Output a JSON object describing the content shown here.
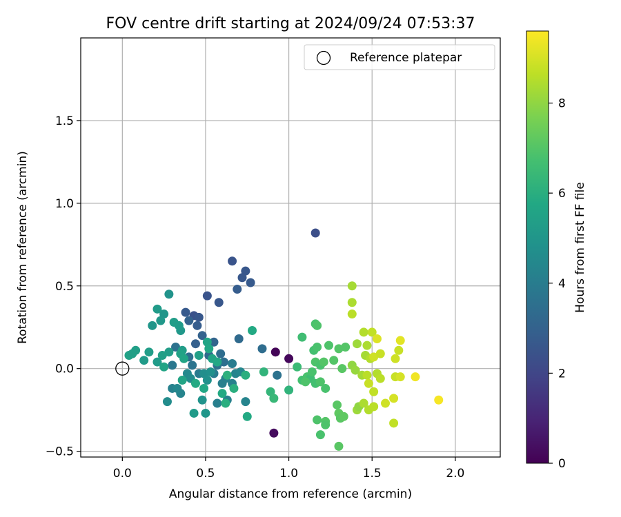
{
  "chart_data": {
    "type": "scatter",
    "title": "FOV centre drift starting at 2024/09/24 07:53:37",
    "xlabel": "Angular distance from reference (arcmin)",
    "ylabel": "Rotation from reference (arcmin)",
    "xlim": [
      -0.25,
      2.27
    ],
    "ylim": [
      -0.535,
      2.0
    ],
    "xticks": [
      "0.0",
      "0.5",
      "1.0",
      "1.5",
      "2.0"
    ],
    "yticks": [
      "−0.5",
      "0.0",
      "0.5",
      "1.0",
      "1.5"
    ],
    "xtick_values": [
      0,
      0.5,
      1.0,
      1.5,
      2.0
    ],
    "ytick_values": [
      -0.5,
      0,
      0.5,
      1.0,
      1.5
    ],
    "grid": true,
    "legend": {
      "position": "top-right",
      "entries": [
        "Reference platepar"
      ]
    },
    "reference_point": {
      "x": 0.0,
      "y": 0.0,
      "label": "Reference platepar"
    },
    "colorbar": {
      "label": "Hours from first FF file",
      "colormap": "viridis",
      "range": [
        0,
        9.6
      ],
      "ticks": [
        "0",
        "2",
        "4",
        "6",
        "8"
      ],
      "tick_values": [
        0,
        2,
        4,
        6,
        8
      ]
    },
    "points": [
      {
        "x": 0.92,
        "y": 0.1,
        "c": 0.1
      },
      {
        "x": 1.0,
        "y": 0.06,
        "c": 0.2
      },
      {
        "x": 0.91,
        "y": -0.39,
        "c": 0.3
      },
      {
        "x": 1.16,
        "y": 0.82,
        "c": 2.3
      },
      {
        "x": 0.66,
        "y": 0.65,
        "c": 2.5
      },
      {
        "x": 0.74,
        "y": 0.59,
        "c": 2.6
      },
      {
        "x": 0.72,
        "y": 0.55,
        "c": 2.6
      },
      {
        "x": 0.77,
        "y": 0.52,
        "c": 2.7
      },
      {
        "x": 0.69,
        "y": 0.48,
        "c": 2.8
      },
      {
        "x": 0.51,
        "y": 0.44,
        "c": 2.5
      },
      {
        "x": 0.58,
        "y": 0.4,
        "c": 2.6
      },
      {
        "x": 0.38,
        "y": 0.34,
        "c": 2.7
      },
      {
        "x": 0.43,
        "y": 0.32,
        "c": 2.4
      },
      {
        "x": 0.46,
        "y": 0.31,
        "c": 2.6
      },
      {
        "x": 0.45,
        "y": 0.26,
        "c": 2.8
      },
      {
        "x": 0.4,
        "y": 0.29,
        "c": 3.0
      },
      {
        "x": 0.48,
        "y": 0.2,
        "c": 3.0
      },
      {
        "x": 0.44,
        "y": 0.15,
        "c": 2.9
      },
      {
        "x": 0.55,
        "y": 0.16,
        "c": 3.1
      },
      {
        "x": 0.7,
        "y": 0.18,
        "c": 3.3
      },
      {
        "x": 0.84,
        "y": 0.12,
        "c": 3.4
      },
      {
        "x": 0.93,
        "y": -0.04,
        "c": 3.6
      },
      {
        "x": 0.52,
        "y": 0.08,
        "c": 3.3
      },
      {
        "x": 0.59,
        "y": 0.09,
        "c": 3.4
      },
      {
        "x": 0.61,
        "y": 0.04,
        "c": 3.5
      },
      {
        "x": 0.57,
        "y": 0.02,
        "c": 3.6
      },
      {
        "x": 0.4,
        "y": 0.07,
        "c": 3.5
      },
      {
        "x": 0.32,
        "y": 0.13,
        "c": 3.6
      },
      {
        "x": 0.3,
        "y": 0.02,
        "c": 3.8
      },
      {
        "x": 0.42,
        "y": 0.02,
        "c": 3.7
      },
      {
        "x": 0.46,
        "y": -0.03,
        "c": 3.9
      },
      {
        "x": 0.55,
        "y": -0.03,
        "c": 4.0
      },
      {
        "x": 0.66,
        "y": 0.03,
        "c": 4.0
      },
      {
        "x": 0.62,
        "y": -0.06,
        "c": 4.2
      },
      {
        "x": 0.6,
        "y": -0.09,
        "c": 4.1
      },
      {
        "x": 0.66,
        "y": -0.09,
        "c": 4.2
      },
      {
        "x": 0.68,
        "y": -0.03,
        "c": 4.3
      },
      {
        "x": 0.71,
        "y": -0.02,
        "c": 4.4
      },
      {
        "x": 0.74,
        "y": -0.2,
        "c": 4.3
      },
      {
        "x": 0.63,
        "y": -0.19,
        "c": 4.2
      },
      {
        "x": 0.57,
        "y": -0.21,
        "c": 4.1
      },
      {
        "x": 0.35,
        "y": -0.15,
        "c": 4.3
      },
      {
        "x": 0.3,
        "y": -0.12,
        "c": 4.2
      },
      {
        "x": 0.33,
        "y": -0.12,
        "c": 4.4
      },
      {
        "x": 0.27,
        "y": -0.2,
        "c": 4.6
      },
      {
        "x": 0.39,
        "y": -0.03,
        "c": 4.5
      },
      {
        "x": 0.41,
        "y": -0.06,
        "c": 4.6
      },
      {
        "x": 0.49,
        "y": -0.03,
        "c": 4.7
      },
      {
        "x": 0.51,
        "y": -0.07,
        "c": 4.8
      },
      {
        "x": 0.53,
        "y": -0.02,
        "c": 4.8
      },
      {
        "x": 0.48,
        "y": -0.19,
        "c": 4.9
      },
      {
        "x": 0.5,
        "y": -0.27,
        "c": 5.0
      },
      {
        "x": 0.43,
        "y": -0.27,
        "c": 5.2
      },
      {
        "x": 0.28,
        "y": 0.45,
        "c": 4.9
      },
      {
        "x": 0.25,
        "y": 0.33,
        "c": 5.0
      },
      {
        "x": 0.21,
        "y": 0.36,
        "c": 5.2
      },
      {
        "x": 0.23,
        "y": 0.29,
        "c": 5.1
      },
      {
        "x": 0.18,
        "y": 0.26,
        "c": 5.0
      },
      {
        "x": 0.35,
        "y": 0.23,
        "c": 5.1
      },
      {
        "x": 0.34,
        "y": 0.26,
        "c": 5.2
      },
      {
        "x": 0.31,
        "y": 0.28,
        "c": 5.3
      },
      {
        "x": 0.36,
        "y": 0.11,
        "c": 5.3
      },
      {
        "x": 0.28,
        "y": 0.1,
        "c": 5.3
      },
      {
        "x": 0.24,
        "y": 0.08,
        "c": 5.4
      },
      {
        "x": 0.21,
        "y": 0.04,
        "c": 5.2
      },
      {
        "x": 0.16,
        "y": 0.1,
        "c": 5.3
      },
      {
        "x": 0.13,
        "y": 0.05,
        "c": 5.2
      },
      {
        "x": 0.08,
        "y": 0.11,
        "c": 5.4
      },
      {
        "x": 0.04,
        "y": 0.08,
        "c": 5.5
      },
      {
        "x": 0.06,
        "y": 0.09,
        "c": 5.4
      },
      {
        "x": 0.25,
        "y": 0.01,
        "c": 5.6
      },
      {
        "x": 0.35,
        "y": 0.09,
        "c": 5.5
      },
      {
        "x": 0.37,
        "y": 0.06,
        "c": 5.6
      },
      {
        "x": 0.46,
        "y": 0.08,
        "c": 5.4
      },
      {
        "x": 0.51,
        "y": 0.16,
        "c": 5.6
      },
      {
        "x": 0.52,
        "y": 0.12,
        "c": 5.7
      },
      {
        "x": 0.54,
        "y": 0.06,
        "c": 5.6
      },
      {
        "x": 0.57,
        "y": 0.04,
        "c": 5.7
      },
      {
        "x": 0.36,
        "y": -0.07,
        "c": 5.6
      },
      {
        "x": 0.44,
        "y": -0.09,
        "c": 5.8
      },
      {
        "x": 0.49,
        "y": -0.12,
        "c": 5.7
      },
      {
        "x": 0.6,
        "y": -0.15,
        "c": 5.8
      },
      {
        "x": 0.62,
        "y": -0.21,
        "c": 6.0
      },
      {
        "x": 0.67,
        "y": -0.12,
        "c": 6.0
      },
      {
        "x": 0.75,
        "y": -0.29,
        "c": 5.8
      },
      {
        "x": 0.74,
        "y": -0.04,
        "c": 6.0
      },
      {
        "x": 0.63,
        "y": -0.04,
        "c": 6.1
      },
      {
        "x": 0.78,
        "y": 0.23,
        "c": 5.8
      },
      {
        "x": 0.85,
        "y": -0.02,
        "c": 6.2
      },
      {
        "x": 0.89,
        "y": -0.14,
        "c": 6.3
      },
      {
        "x": 0.91,
        "y": -0.18,
        "c": 6.4
      },
      {
        "x": 1.0,
        "y": -0.13,
        "c": 6.2
      },
      {
        "x": 1.05,
        "y": 0.01,
        "c": 6.5
      },
      {
        "x": 1.08,
        "y": 0.19,
        "c": 6.6
      },
      {
        "x": 1.08,
        "y": -0.07,
        "c": 6.7
      },
      {
        "x": 1.11,
        "y": -0.05,
        "c": 6.8
      },
      {
        "x": 1.13,
        "y": -0.06,
        "c": 6.6
      },
      {
        "x": 1.1,
        "y": -0.08,
        "c": 6.9
      },
      {
        "x": 1.14,
        "y": -0.02,
        "c": 6.8
      },
      {
        "x": 1.16,
        "y": -0.09,
        "c": 6.7
      },
      {
        "x": 1.19,
        "y": -0.08,
        "c": 6.9
      },
      {
        "x": 1.22,
        "y": -0.12,
        "c": 6.8
      },
      {
        "x": 1.16,
        "y": 0.27,
        "c": 6.8
      },
      {
        "x": 1.17,
        "y": 0.26,
        "c": 6.9
      },
      {
        "x": 1.15,
        "y": 0.11,
        "c": 6.7
      },
      {
        "x": 1.17,
        "y": 0.13,
        "c": 6.8
      },
      {
        "x": 1.16,
        "y": 0.04,
        "c": 6.9
      },
      {
        "x": 1.19,
        "y": 0.02,
        "c": 6.8
      },
      {
        "x": 1.21,
        "y": 0.04,
        "c": 7.0
      },
      {
        "x": 1.24,
        "y": 0.14,
        "c": 6.9
      },
      {
        "x": 1.27,
        "y": 0.05,
        "c": 7.0
      },
      {
        "x": 1.3,
        "y": 0.12,
        "c": 7.0
      },
      {
        "x": 1.32,
        "y": 0.0,
        "c": 7.1
      },
      {
        "x": 1.34,
        "y": 0.13,
        "c": 7.0
      },
      {
        "x": 1.17,
        "y": -0.31,
        "c": 6.9
      },
      {
        "x": 1.19,
        "y": -0.4,
        "c": 6.8
      },
      {
        "x": 1.22,
        "y": -0.32,
        "c": 7.0
      },
      {
        "x": 1.22,
        "y": -0.34,
        "c": 6.9
      },
      {
        "x": 1.29,
        "y": -0.22,
        "c": 7.1
      },
      {
        "x": 1.3,
        "y": -0.27,
        "c": 7.2
      },
      {
        "x": 1.31,
        "y": -0.3,
        "c": 7.1
      },
      {
        "x": 1.33,
        "y": -0.29,
        "c": 7.2
      },
      {
        "x": 1.3,
        "y": -0.47,
        "c": 7.1
      },
      {
        "x": 1.38,
        "y": 0.5,
        "c": 8.3
      },
      {
        "x": 1.38,
        "y": 0.4,
        "c": 8.4
      },
      {
        "x": 1.38,
        "y": 0.33,
        "c": 8.6
      },
      {
        "x": 1.41,
        "y": 0.15,
        "c": 8.2
      },
      {
        "x": 1.45,
        "y": 0.22,
        "c": 8.5
      },
      {
        "x": 1.47,
        "y": 0.14,
        "c": 8.4
      },
      {
        "x": 1.46,
        "y": 0.08,
        "c": 8.3
      },
      {
        "x": 1.49,
        "y": 0.06,
        "c": 8.5
      },
      {
        "x": 1.5,
        "y": 0.22,
        "c": 8.7
      },
      {
        "x": 1.38,
        "y": 0.02,
        "c": 8.0
      },
      {
        "x": 1.4,
        "y": -0.01,
        "c": 8.1
      },
      {
        "x": 1.44,
        "y": -0.04,
        "c": 8.3
      },
      {
        "x": 1.47,
        "y": -0.04,
        "c": 8.6
      },
      {
        "x": 1.48,
        "y": -0.09,
        "c": 8.8
      },
      {
        "x": 1.41,
        "y": -0.25,
        "c": 8.2
      },
      {
        "x": 1.42,
        "y": -0.23,
        "c": 8.0
      },
      {
        "x": 1.45,
        "y": -0.21,
        "c": 8.4
      },
      {
        "x": 1.48,
        "y": -0.25,
        "c": 8.5
      },
      {
        "x": 1.51,
        "y": -0.23,
        "c": 8.6
      },
      {
        "x": 1.51,
        "y": -0.14,
        "c": 8.7
      },
      {
        "x": 1.53,
        "y": -0.03,
        "c": 8.5
      },
      {
        "x": 1.55,
        "y": -0.06,
        "c": 8.6
      },
      {
        "x": 1.51,
        "y": 0.07,
        "c": 8.9
      },
      {
        "x": 1.53,
        "y": 0.18,
        "c": 9.1
      },
      {
        "x": 1.55,
        "y": 0.09,
        "c": 8.8
      },
      {
        "x": 1.58,
        "y": -0.21,
        "c": 8.9
      },
      {
        "x": 1.63,
        "y": -0.18,
        "c": 9.0
      },
      {
        "x": 1.63,
        "y": -0.33,
        "c": 8.7
      },
      {
        "x": 1.64,
        "y": -0.05,
        "c": 8.8
      },
      {
        "x": 1.67,
        "y": -0.05,
        "c": 9.0
      },
      {
        "x": 1.64,
        "y": 0.06,
        "c": 8.9
      },
      {
        "x": 1.66,
        "y": 0.11,
        "c": 8.8
      },
      {
        "x": 1.67,
        "y": 0.17,
        "c": 9.2
      },
      {
        "x": 1.76,
        "y": -0.05,
        "c": 9.4
      },
      {
        "x": 1.9,
        "y": -0.19,
        "c": 9.5
      }
    ]
  }
}
